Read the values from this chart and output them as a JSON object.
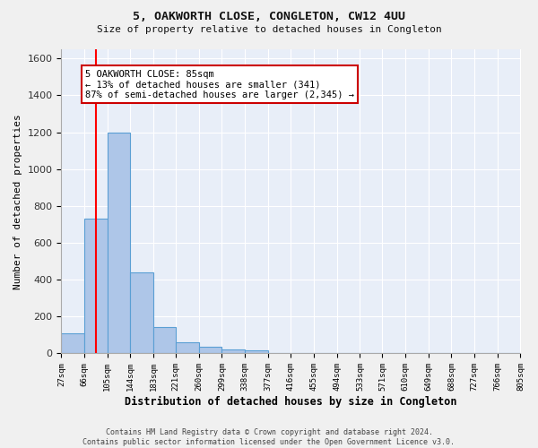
{
  "title1": "5, OAKWORTH CLOSE, CONGLETON, CW12 4UU",
  "title2": "Size of property relative to detached houses in Congleton",
  "xlabel": "Distribution of detached houses by size in Congleton",
  "ylabel": "Number of detached properties",
  "footnote": "Contains HM Land Registry data © Crown copyright and database right 2024.\nContains public sector information licensed under the Open Government Licence v3.0.",
  "bin_labels": [
    "27sqm",
    "66sqm",
    "105sqm",
    "144sqm",
    "183sqm",
    "221sqm",
    "260sqm",
    "299sqm",
    "338sqm",
    "377sqm",
    "416sqm",
    "455sqm",
    "494sqm",
    "533sqm",
    "571sqm",
    "610sqm",
    "649sqm",
    "688sqm",
    "727sqm",
    "766sqm",
    "805sqm"
  ],
  "bin_edges": [
    27,
    66,
    105,
    144,
    183,
    221,
    260,
    299,
    338,
    377,
    416,
    455,
    494,
    533,
    571,
    610,
    649,
    688,
    727,
    766,
    805
  ],
  "bar_heights": [
    110,
    730,
    1200,
    440,
    145,
    60,
    35,
    20,
    15,
    0,
    0,
    0,
    0,
    0,
    0,
    0,
    0,
    0,
    0,
    0
  ],
  "bar_color": "#aec6e8",
  "bar_edge_color": "#5a9fd4",
  "background_color": "#e8eef8",
  "grid_color": "#ffffff",
  "fig_background": "#f0f0f0",
  "red_line_x": 85,
  "annotation_text": "5 OAKWORTH CLOSE: 85sqm\n← 13% of detached houses are smaller (341)\n87% of semi-detached houses are larger (2,345) →",
  "annotation_box_color": "#cc0000",
  "ylim": [
    0,
    1650
  ],
  "yticks": [
    0,
    200,
    400,
    600,
    800,
    1000,
    1200,
    1400,
    1600
  ]
}
